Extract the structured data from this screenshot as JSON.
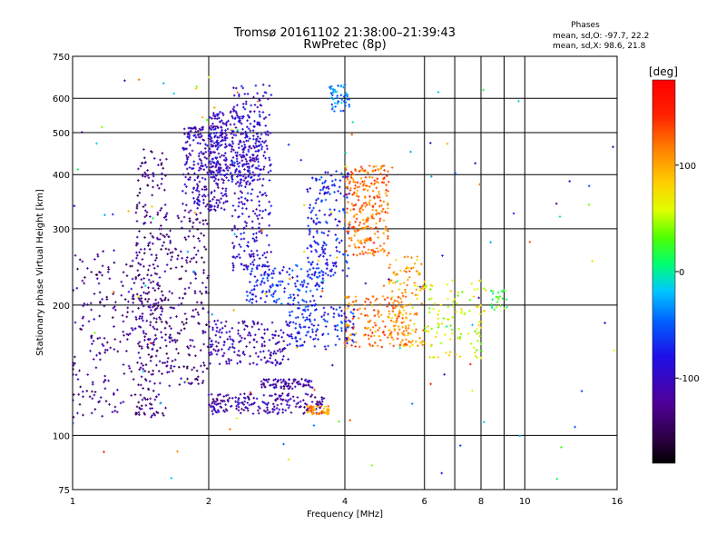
{
  "chart_data": {
    "type": "scatter",
    "title": "Tromsø 20161102 21:38:00–21:39:43",
    "subtitle": "RwPretec (8p)",
    "xlabel": "Frequency [MHz]",
    "ylabel": "Stationary phase Virtual Height [km]",
    "x_scale": "log",
    "y_scale": "log",
    "xlim": [
      1,
      16
    ],
    "ylim": [
      75,
      750
    ],
    "x_ticks": [
      1,
      2,
      4,
      6,
      8,
      10,
      16
    ],
    "x_minor_ticks": [
      7,
      9
    ],
    "y_ticks": [
      75,
      100,
      200,
      300,
      400,
      500,
      600,
      750
    ],
    "grid": true,
    "phases": {
      "heading": "Phases",
      "line_o": "mean, sd,O:  -97.7, 22.2",
      "line_x": "mean, sd,X:  98.6, 21.8"
    },
    "colorbar": {
      "unit": "[deg]",
      "range": [
        -180,
        180
      ],
      "ticks": [
        100,
        0,
        -100
      ],
      "colormap": "rainbow (black → violet → blue → cyan → green → yellow → orange → red)"
    },
    "traces": [
      {
        "x_range": [
          1.0,
          1.55
        ],
        "h_range": [
          110,
          270
        ],
        "phase": -125,
        "n": 260
      },
      {
        "x_range": [
          1.38,
          1.62
        ],
        "h_range": [
          110,
          460
        ],
        "phase": -130,
        "n": 240
      },
      {
        "x_range": [
          1.6,
          2.0
        ],
        "h_range": [
          130,
          330
        ],
        "phase": -130,
        "n": 200
      },
      {
        "x_range": [
          1.75,
          2.2
        ],
        "h_range": [
          330,
          520
        ],
        "phase": -105,
        "n": 280
      },
      {
        "x_range": [
          2.0,
          2.6
        ],
        "h_range": [
          380,
          560
        ],
        "phase": -100,
        "n": 260
      },
      {
        "x_range": [
          2.25,
          2.75
        ],
        "h_range": [
          240,
          650
        ],
        "phase": -95,
        "n": 280
      },
      {
        "x_range": [
          2.0,
          3.0
        ],
        "h_range": [
          145,
          185
        ],
        "phase": -110,
        "n": 180
      },
      {
        "x_range": [
          2.0,
          3.6
        ],
        "h_range": [
          112,
          125
        ],
        "phase": -112,
        "n": 200
      },
      {
        "x_range": [
          2.6,
          3.4
        ],
        "h_range": [
          128,
          135
        ],
        "phase": -118,
        "n": 80
      },
      {
        "x_range": [
          3.3,
          3.7
        ],
        "h_range": [
          112,
          117
        ],
        "phase": 110,
        "n": 60
      },
      {
        "x_range": [
          2.4,
          3.6
        ],
        "h_range": [
          200,
          250
        ],
        "phase": -70,
        "n": 160
      },
      {
        "x_range": [
          3.3,
          4.1
        ],
        "h_range": [
          230,
          410
        ],
        "phase": -75,
        "n": 180
      },
      {
        "x_range": [
          3.7,
          4.1
        ],
        "h_range": [
          560,
          650
        ],
        "phase": -40,
        "n": 50
      },
      {
        "x_range": [
          4.0,
          5.0
        ],
        "h_range": [
          260,
          420
        ],
        "phase": 120,
        "n": 260
      },
      {
        "x_range": [
          4.0,
          5.5
        ],
        "h_range": [
          160,
          210
        ],
        "phase": 120,
        "n": 150
      },
      {
        "x_range": [
          3.0,
          4.2
        ],
        "h_range": [
          160,
          200
        ],
        "phase": -75,
        "n": 140
      },
      {
        "x_range": [
          5.0,
          6.0
        ],
        "h_range": [
          160,
          260
        ],
        "phase": 100,
        "n": 130
      },
      {
        "x_range": [
          6.0,
          8.2
        ],
        "h_range": [
          150,
          230
        ],
        "phase": 60,
        "n": 110
      },
      {
        "x_range": [
          8.3,
          9.2
        ],
        "h_range": [
          195,
          220
        ],
        "phase": 20,
        "n": 25
      },
      {
        "x_range": [
          1.0,
          16.0
        ],
        "h_range": [
          78,
          680
        ],
        "phase": 0,
        "n": 140
      }
    ]
  },
  "colors": {
    "background": "#ffffff",
    "grid": "#000000",
    "text": "#000000"
  }
}
